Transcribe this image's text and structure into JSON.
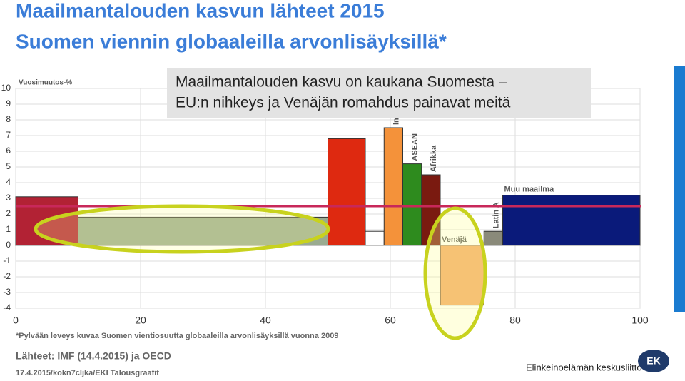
{
  "chart_data": {
    "type": "variable-width-bar",
    "title": "Maailmantalouden kasvun lähteet 2015",
    "subtitle": "Suomen viennin globaaleilla arvonlisäyksillä*",
    "y_label": "Vuosimuutos-%",
    "annotation": [
      "Maailmantalouden kasvu on kaukana Suomesta –",
      "EU:n nihkeys ja Venäjän romahdus painavat meitä"
    ],
    "categories": [
      null,
      null,
      null,
      null,
      "In",
      "ASEAN",
      "Afrikka",
      "Venäjä",
      "Latin A",
      "Muu maailma"
    ],
    "bins": [
      0,
      10,
      50,
      56,
      59,
      62,
      65,
      68,
      75,
      78,
      100
    ],
    "values": [
      3.1,
      1.8,
      6.8,
      0.9,
      7.5,
      5.2,
      4.5,
      -3.8,
      0.9,
      3.2
    ],
    "colors": [
      "#b22234",
      "#9aab90",
      "#de2910",
      "#ffffff",
      "#f4923a",
      "#2e8b1e",
      "#7a1a10",
      "#f2a866",
      "#8a8a7a",
      "#0a1a7a"
    ],
    "reference_line": 2.5,
    "reference_color": "#c8285a",
    "xlim": [
      0,
      100
    ],
    "xticks": [
      0,
      20,
      40,
      60,
      80,
      100
    ],
    "ylim": [
      -4,
      10
    ],
    "yticks": [
      -4,
      -3,
      -2,
      -1,
      0,
      1,
      2,
      3,
      4,
      5,
      6,
      7,
      8,
      9,
      10
    ],
    "grid": true,
    "footnote": "*Pylvään leveys kuvaa Suomen vientiosuutta globaaleilla arvonlisäyksillä vuonna 2009",
    "source": "Lähteet: IMF (14.4.2015) ja OECD",
    "credit": "17.4.2015/kokn7cljka/EKI Talousgraafit",
    "organization": "Elinkeinoelämän keskusliitto",
    "logo": "EK"
  }
}
